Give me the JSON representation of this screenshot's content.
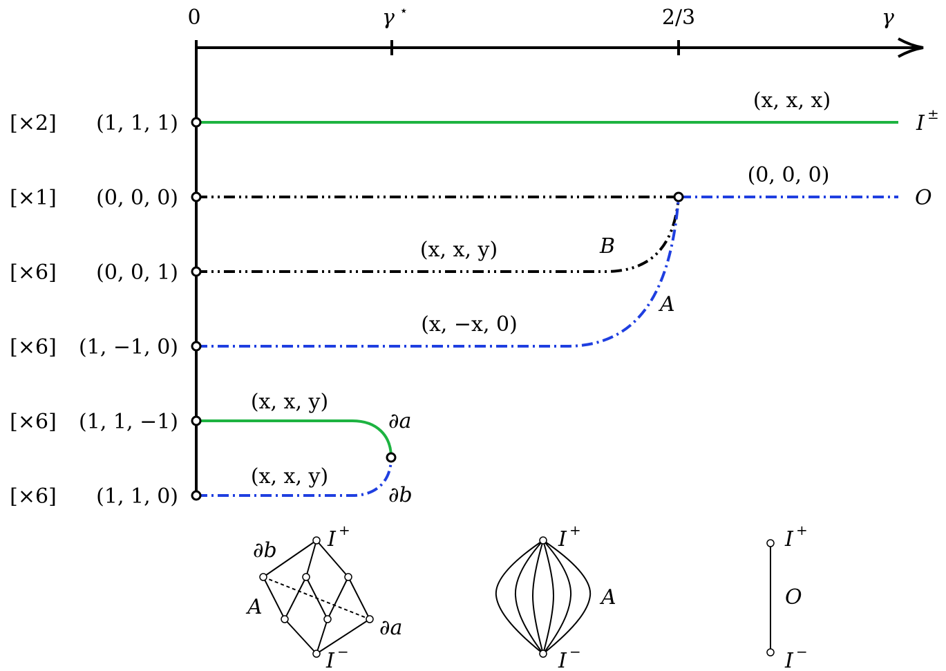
{
  "axis": {
    "ticks": [
      "0",
      "γ",
      "2/3",
      "γ"
    ],
    "tick_star_sup": "⋆"
  },
  "rows": [
    {
      "mult": "[×2]",
      "point": "(1, 1, 1)"
    },
    {
      "mult": "[×1]",
      "point": "(0, 0, 0)"
    },
    {
      "mult": "[×6]",
      "point": "(0, 0, 1)"
    },
    {
      "mult": "[×6]",
      "point": "(1, −1, 0)"
    },
    {
      "mult": "[×6]",
      "point": "(1, 1, −1)"
    },
    {
      "mult": "[×6]",
      "point": "(1, 1, 0)"
    }
  ],
  "curve_labels": {
    "xxx": "(x, x, x)",
    "zero": "(0, 0, 0)",
    "xxy_b": "(x, x, y)",
    "xmx0": "(x, −x, 0)",
    "xxy_top": "(x, x, y)",
    "xxy_bottom": "(x, x, y)"
  },
  "end_labels": {
    "I_pm": "I",
    "I_pm_sup": "±",
    "O": "O",
    "B": "B",
    "A": "A",
    "da": "∂a",
    "db": "∂b"
  },
  "lattices": {
    "left": {
      "top": "I",
      "top_sup": "+",
      "bottom": "I",
      "bottom_sup": "−",
      "db": "∂b",
      "A": "A",
      "da": "∂a"
    },
    "middle": {
      "top": "I",
      "top_sup": "+",
      "bottom": "I",
      "bottom_sup": "−",
      "A": "A"
    },
    "right": {
      "top": "I",
      "top_sup": "+",
      "middle": "O",
      "bottom": "I",
      "bottom_sup": "−"
    }
  },
  "colors": {
    "green": "#1db341",
    "blue": "#1f3fe0",
    "black": "#000000"
  }
}
